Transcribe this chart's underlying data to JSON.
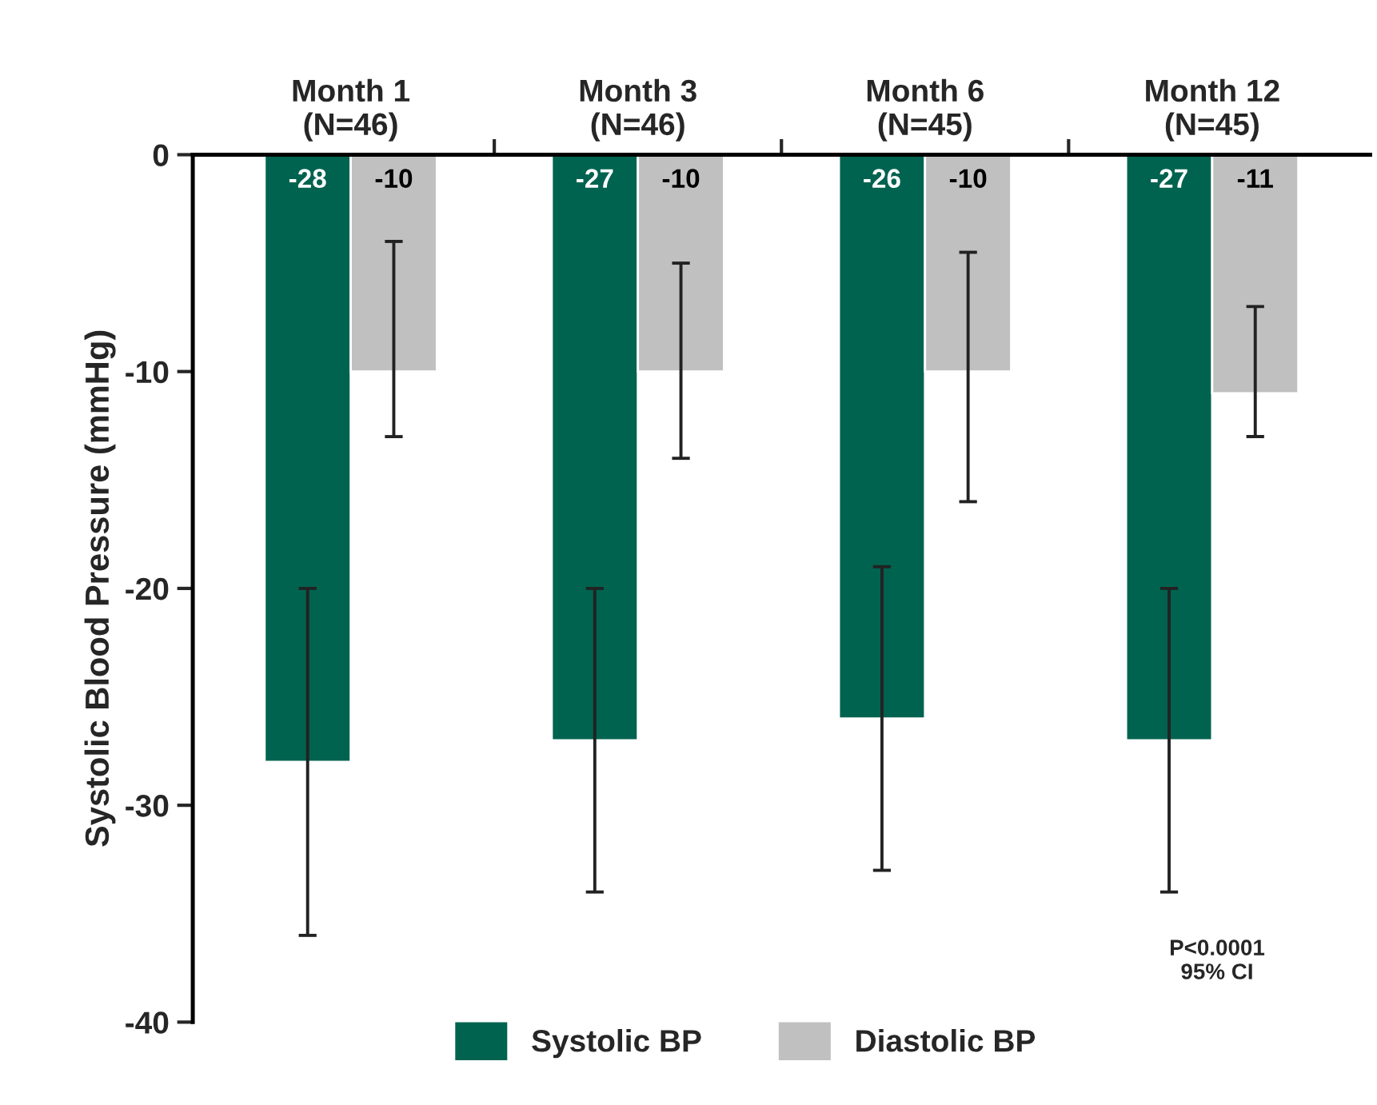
{
  "chart_data": {
    "type": "bar",
    "ylabel": "Systolic Blood Pressure (mmHg)",
    "categories": [
      "Month 1\n(N=46)",
      "Month 3\n(N=46)",
      "Month 6\n(N=45)",
      "Month 12\n(N=45)"
    ],
    "series": [
      {
        "name": "Systolic BP",
        "color": "#00634f",
        "values": [
          -28,
          -27,
          -26,
          -27
        ],
        "errors": [
          [
            -36,
            -20
          ],
          [
            -34,
            -20
          ],
          [
            -33,
            -19
          ],
          [
            -34,
            -20
          ]
        ]
      },
      {
        "name": "Diastolic BP",
        "color": "#c0c0c0",
        "values": [
          -10,
          -10,
          -10,
          -11
        ],
        "errors": [
          [
            -13,
            -4
          ],
          [
            -14,
            -5
          ],
          [
            -16,
            -4.5
          ],
          [
            -13,
            -7
          ]
        ]
      }
    ],
    "ylim": [
      -40,
      0
    ],
    "yticks": [
      0,
      -10,
      -20,
      -30,
      -40
    ],
    "data_labels": true,
    "legend": "bottom",
    "grid": false,
    "annotations": [
      "P<0.0001\n95% CI"
    ]
  }
}
